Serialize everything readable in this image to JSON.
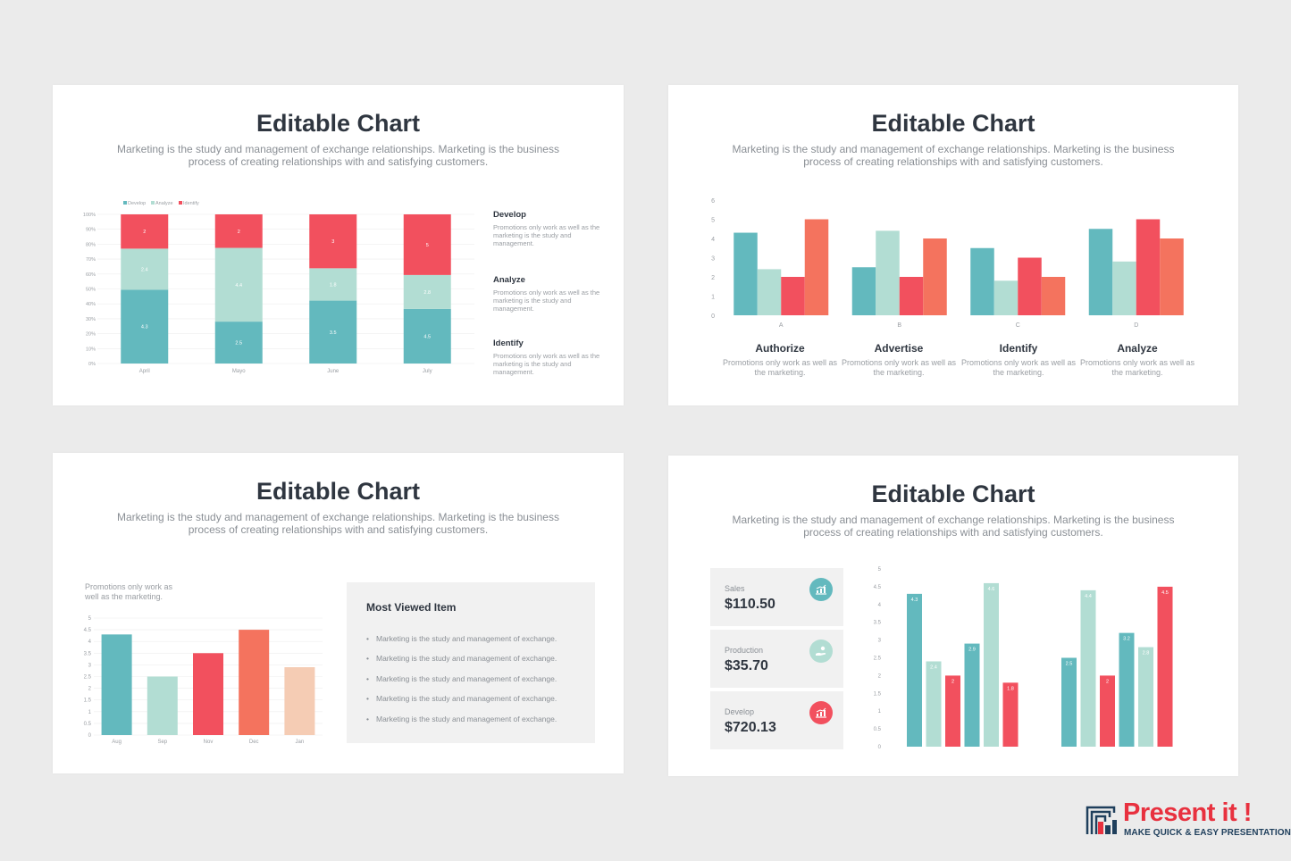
{
  "colors": {
    "teal": "#63b9be",
    "mint": "#b2ddd3",
    "red": "#f2505e",
    "coral": "#f4735e",
    "peach": "#f5ccb4",
    "title": "#2f3640",
    "grey": "#8a8f95"
  },
  "slides": [
    {
      "title": "Editable Chart",
      "subtitle": "Marketing is the study and management of exchange relationships. Marketing is the business process of creating relationships with and satisfying customers.",
      "side_items": [
        {
          "heading": "Develop",
          "text": "Promotions only work as well as the marketing is the study and management."
        },
        {
          "heading": "Analyze",
          "text": "Promotions only work as well as the marketing is the study and management."
        },
        {
          "heading": "Identify",
          "text": "Promotions only work as well as the marketing is the study and management."
        }
      ]
    },
    {
      "title": "Editable Chart",
      "subtitle": "Marketing is the study and management of exchange relationships. Marketing is the business process of creating relationships with and satisfying customers.",
      "categories_info": [
        {
          "heading": "Authorize",
          "text": "Promotions only work as well as the marketing."
        },
        {
          "heading": "Advertise",
          "text": "Promotions only work as well as the marketing."
        },
        {
          "heading": "Identify",
          "text": "Promotions only work as well as the marketing."
        },
        {
          "heading": "Analyze",
          "text": "Promotions only work as well as the marketing."
        }
      ]
    },
    {
      "title": "Editable Chart",
      "subtitle": "Marketing is the study and management of exchange relationships. Marketing is the business process of creating relationships with and satisfying customers.",
      "note": "Promotions only work as well as the marketing.",
      "most_viewed": {
        "title": "Most Viewed Item",
        "items": [
          "Marketing is the study and management of exchange.",
          "Marketing is the study and management of exchange.",
          "Marketing is the study and management of exchange.",
          "Marketing is the study and management of exchange.",
          "Marketing is the study and management of exchange."
        ]
      }
    },
    {
      "title": "Editable Chart",
      "subtitle": "Marketing is the study and management of exchange relationships. Marketing is the business process of creating relationships with and satisfying customers.",
      "kpis": [
        {
          "label": "Sales",
          "value": "$110.50",
          "icon": "chart-up-icon",
          "color": "#63b9be"
        },
        {
          "label": "Production",
          "value": "$35.70",
          "icon": "hand-coin-icon",
          "color": "#b2ddd3"
        },
        {
          "label": "Develop",
          "value": "$720.13",
          "icon": "chart-up-icon",
          "color": "#f2505e"
        }
      ]
    }
  ],
  "chart_data": [
    {
      "type": "bar",
      "stacked": "percent",
      "categories": [
        "April",
        "Mayo",
        "June",
        "July"
      ],
      "series": [
        {
          "name": "Develop",
          "color": "#63b9be",
          "values": [
            4.3,
            2.5,
            3.5,
            4.5
          ]
        },
        {
          "name": "Analyze",
          "color": "#b2ddd3",
          "values": [
            2.4,
            4.4,
            1.8,
            2.8
          ]
        },
        {
          "name": "Identify",
          "color": "#f2505e",
          "values": [
            2,
            2,
            3,
            5
          ]
        }
      ],
      "yticks": [
        "0%",
        "10%",
        "20%",
        "30%",
        "40%",
        "50%",
        "60%",
        "70%",
        "80%",
        "90%",
        "100%"
      ],
      "ylim": [
        0,
        100
      ],
      "legend": "top-left",
      "grid": true
    },
    {
      "type": "bar",
      "categories": [
        "A",
        "B",
        "C",
        "D"
      ],
      "series": [
        {
          "color": "#63b9be",
          "values": [
            4.3,
            2.5,
            3.5,
            4.5
          ]
        },
        {
          "color": "#b2ddd3",
          "values": [
            2.4,
            4.4,
            1.8,
            2.8
          ]
        },
        {
          "color": "#f2505e",
          "values": [
            2,
            2,
            3,
            5
          ]
        },
        {
          "color": "#f4735e",
          "values": [
            5,
            4,
            2,
            4
          ]
        }
      ],
      "yticks": [
        "0",
        "1",
        "2",
        "3",
        "4",
        "5",
        "6"
      ],
      "ylim": [
        0,
        6
      ],
      "grid": false
    },
    {
      "type": "bar",
      "categories": [
        "Aug",
        "Sep",
        "Nov",
        "Dec",
        "Jan"
      ],
      "values": [
        4.3,
        2.5,
        3.5,
        4.5,
        2.9
      ],
      "colors": [
        "#63b9be",
        "#b2ddd3",
        "#f2505e",
        "#f4735e",
        "#f5ccb4"
      ],
      "yticks": [
        "0",
        "0.5",
        "1",
        "1.5",
        "2",
        "2.5",
        "3",
        "3.5",
        "4",
        "4.5",
        "5"
      ],
      "ylim": [
        0,
        5
      ],
      "grid": true
    },
    {
      "type": "bar",
      "groups": [
        {
          "values": [
            4.3,
            2.4,
            2,
            2.9,
            4.6,
            1.8
          ]
        },
        {
          "values": [
            2.5,
            4.4,
            2,
            3.2,
            2.8,
            4.5
          ]
        }
      ],
      "colors": [
        "#63b9be",
        "#b2ddd3",
        "#f2505e",
        "#63b9be",
        "#b2ddd3",
        "#f2505e"
      ],
      "yticks": [
        "0",
        "0.5",
        "1",
        "1.5",
        "2",
        "2.5",
        "3",
        "3.5",
        "4",
        "4.5",
        "5"
      ],
      "ylim": [
        0,
        5
      ],
      "data_labels": true,
      "grid": false
    }
  ],
  "brand": {
    "name": "Present it !",
    "tagline": "MAKE QUICK & EASY PRESENTATIONS"
  }
}
